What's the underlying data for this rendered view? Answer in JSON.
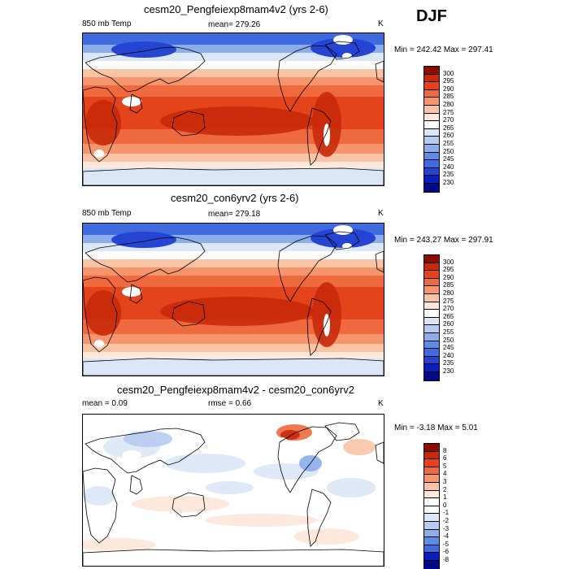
{
  "season": "DJF",
  "colors": {
    "temp_levels": [
      "#8b0d00",
      "#c62a0a",
      "#e3441c",
      "#ef6a3f",
      "#f4956e",
      "#f9c3a6",
      "#fde6da",
      "#ffffff",
      "#dbe6f6",
      "#b7cbef",
      "#8cadea",
      "#5d8ce4",
      "#3f6be0",
      "#2544d4",
      "#0b1fbf",
      "#000a87"
    ],
    "diff_levels": [
      "#8b0d00",
      "#c62a0a",
      "#e3441c",
      "#ef6a3f",
      "#f4956e",
      "#f9c3a6",
      "#fde6da",
      "#ffffff",
      "#ffffff",
      "#dbe6f6",
      "#b7cbef",
      "#8cadea",
      "#5d8ce4",
      "#3f6be0",
      "#0b1fbf",
      "#000a87"
    ],
    "land": "#000000"
  },
  "chart_data": [
    {
      "type": "heatmap",
      "title": "cesm20_Pengfeiexp8mam4v2 (yrs 2-6)",
      "left_label": "850 mb Temp",
      "center_label": "mean= 279.26",
      "units": "K",
      "min_max": "Min = 242.42 Max = 297.41",
      "colorbar_ticks": [
        "300",
        "295",
        "290",
        "285",
        "280",
        "275",
        "270",
        "265",
        "260",
        "255",
        "250",
        "245",
        "240",
        "235",
        "230"
      ]
    },
    {
      "type": "heatmap",
      "title": "cesm20_con6yrv2 (yrs 2-6)",
      "left_label": "850 mb Temp",
      "center_label": "mean= 279.18",
      "units": "K",
      "min_max": "Min = 243.27 Max = 297.91",
      "colorbar_ticks": [
        "300",
        "295",
        "290",
        "285",
        "280",
        "275",
        "270",
        "265",
        "260",
        "255",
        "250",
        "245",
        "240",
        "235",
        "230"
      ]
    },
    {
      "type": "heatmap",
      "title": "cesm20_Pengfeiexp8mam4v2 - cesm20_con6yrv2",
      "left_label": "mean =   0.09",
      "center_label": "rmse =    0.66",
      "units": "K",
      "min_max": "Min =  -3.18 Max =   5.01",
      "colorbar_ticks": [
        "8",
        "6",
        "5",
        "4",
        "3",
        "2",
        "1",
        "0",
        "-1",
        "-2",
        "-3",
        "-4",
        "-5",
        "-6",
        "-8"
      ]
    }
  ]
}
